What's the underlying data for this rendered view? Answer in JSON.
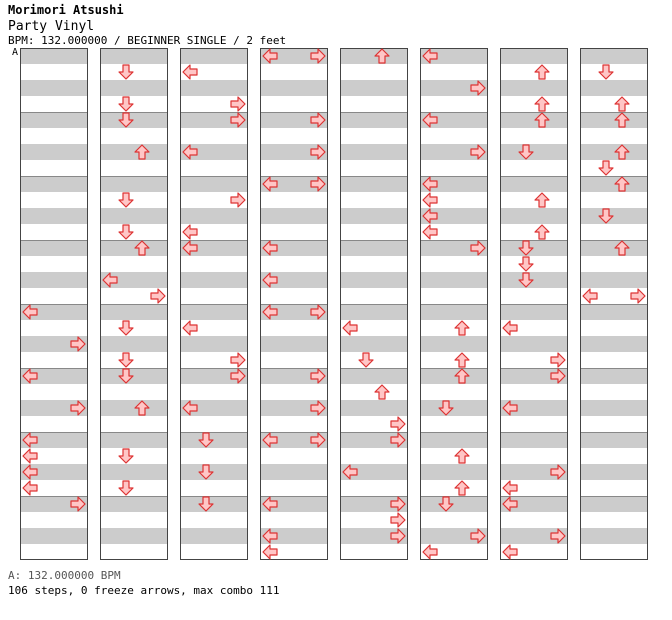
{
  "header": {
    "artist": "Morimori Atsushi",
    "title": "Party Vinyl",
    "info": "BPM: 132.000000 / BEGINNER SINGLE / 2 feet",
    "bpm_marker": "A"
  },
  "footer": {
    "bpm_line": "A: 132.000000 BPM",
    "stats": "106 steps, 0 freeze arrows, max combo 111"
  },
  "colors": {
    "stripe": "#cccccc",
    "arrow_fill": "#ffc6c6",
    "arrow_stroke": "#dd3333",
    "border": "#444444"
  },
  "chart_data": {
    "type": "step-chart",
    "columns": 8,
    "measures_per_column": 8,
    "lanes": [
      "left",
      "down",
      "up",
      "right"
    ],
    "notes": [
      {
        "c": 0,
        "r": 16,
        "d": "left"
      },
      {
        "c": 0,
        "r": 18,
        "d": "right"
      },
      {
        "c": 0,
        "r": 20,
        "d": "left"
      },
      {
        "c": 0,
        "r": 22,
        "d": "right"
      },
      {
        "c": 0,
        "r": 24,
        "d": "left"
      },
      {
        "c": 0,
        "r": 25,
        "d": "left"
      },
      {
        "c": 0,
        "r": 26,
        "d": "left"
      },
      {
        "c": 0,
        "r": 27,
        "d": "left"
      },
      {
        "c": 0,
        "r": 28,
        "d": "right"
      },
      {
        "c": 1,
        "r": 1,
        "d": "down"
      },
      {
        "c": 1,
        "r": 3,
        "d": "down"
      },
      {
        "c": 1,
        "r": 4,
        "d": "down"
      },
      {
        "c": 1,
        "r": 6,
        "d": "up"
      },
      {
        "c": 1,
        "r": 9,
        "d": "down"
      },
      {
        "c": 1,
        "r": 11,
        "d": "down"
      },
      {
        "c": 1,
        "r": 12,
        "d": "up"
      },
      {
        "c": 1,
        "r": 14,
        "d": "left"
      },
      {
        "c": 1,
        "r": 15,
        "d": "right"
      },
      {
        "c": 1,
        "r": 17,
        "d": "down"
      },
      {
        "c": 1,
        "r": 19,
        "d": "down"
      },
      {
        "c": 1,
        "r": 20,
        "d": "down"
      },
      {
        "c": 1,
        "r": 22,
        "d": "up"
      },
      {
        "c": 1,
        "r": 25,
        "d": "down"
      },
      {
        "c": 1,
        "r": 27,
        "d": "down"
      },
      {
        "c": 2,
        "r": 1,
        "d": "left"
      },
      {
        "c": 2,
        "r": 3,
        "d": "right"
      },
      {
        "c": 2,
        "r": 4,
        "d": "right"
      },
      {
        "c": 2,
        "r": 6,
        "d": "left"
      },
      {
        "c": 2,
        "r": 9,
        "d": "right"
      },
      {
        "c": 2,
        "r": 11,
        "d": "left"
      },
      {
        "c": 2,
        "r": 12,
        "d": "left"
      },
      {
        "c": 2,
        "r": 17,
        "d": "left"
      },
      {
        "c": 2,
        "r": 19,
        "d": "right"
      },
      {
        "c": 2,
        "r": 20,
        "d": "right"
      },
      {
        "c": 2,
        "r": 22,
        "d": "left"
      },
      {
        "c": 2,
        "r": 24,
        "d": "down"
      },
      {
        "c": 2,
        "r": 26,
        "d": "down"
      },
      {
        "c": 2,
        "r": 28,
        "d": "down"
      },
      {
        "c": 3,
        "r": 0,
        "d": "left"
      },
      {
        "c": 3,
        "r": 0,
        "d": "right"
      },
      {
        "c": 3,
        "r": 4,
        "d": "right"
      },
      {
        "c": 3,
        "r": 6,
        "d": "right"
      },
      {
        "c": 3,
        "r": 8,
        "d": "left"
      },
      {
        "c": 3,
        "r": 8,
        "d": "right"
      },
      {
        "c": 3,
        "r": 12,
        "d": "left"
      },
      {
        "c": 3,
        "r": 14,
        "d": "left"
      },
      {
        "c": 3,
        "r": 16,
        "d": "left"
      },
      {
        "c": 3,
        "r": 16,
        "d": "right"
      },
      {
        "c": 3,
        "r": 20,
        "d": "right"
      },
      {
        "c": 3,
        "r": 22,
        "d": "right"
      },
      {
        "c": 3,
        "r": 24,
        "d": "left"
      },
      {
        "c": 3,
        "r": 24,
        "d": "right"
      },
      {
        "c": 3,
        "r": 28,
        "d": "left"
      },
      {
        "c": 3,
        "r": 30,
        "d": "left"
      },
      {
        "c": 3,
        "r": 31,
        "d": "left"
      },
      {
        "c": 4,
        "r": 0,
        "d": "up"
      },
      {
        "c": 4,
        "r": 17,
        "d": "left"
      },
      {
        "c": 4,
        "r": 19,
        "d": "down"
      },
      {
        "c": 4,
        "r": 21,
        "d": "up"
      },
      {
        "c": 4,
        "r": 23,
        "d": "right"
      },
      {
        "c": 4,
        "r": 24,
        "d": "right"
      },
      {
        "c": 4,
        "r": 26,
        "d": "left"
      },
      {
        "c": 4,
        "r": 28,
        "d": "right"
      },
      {
        "c": 4,
        "r": 29,
        "d": "right"
      },
      {
        "c": 4,
        "r": 30,
        "d": "right"
      },
      {
        "c": 5,
        "r": 0,
        "d": "left"
      },
      {
        "c": 5,
        "r": 2,
        "d": "right"
      },
      {
        "c": 5,
        "r": 4,
        "d": "left"
      },
      {
        "c": 5,
        "r": 6,
        "d": "right"
      },
      {
        "c": 5,
        "r": 8,
        "d": "left"
      },
      {
        "c": 5,
        "r": 9,
        "d": "left"
      },
      {
        "c": 5,
        "r": 10,
        "d": "left"
      },
      {
        "c": 5,
        "r": 11,
        "d": "left"
      },
      {
        "c": 5,
        "r": 12,
        "d": "right"
      },
      {
        "c": 5,
        "r": 17,
        "d": "up"
      },
      {
        "c": 5,
        "r": 19,
        "d": "up"
      },
      {
        "c": 5,
        "r": 20,
        "d": "up"
      },
      {
        "c": 5,
        "r": 22,
        "d": "down"
      },
      {
        "c": 5,
        "r": 25,
        "d": "up"
      },
      {
        "c": 5,
        "r": 27,
        "d": "up"
      },
      {
        "c": 5,
        "r": 28,
        "d": "down"
      },
      {
        "c": 5,
        "r": 30,
        "d": "right"
      },
      {
        "c": 5,
        "r": 31,
        "d": "left"
      },
      {
        "c": 6,
        "r": 1,
        "d": "up"
      },
      {
        "c": 6,
        "r": 3,
        "d": "up"
      },
      {
        "c": 6,
        "r": 4,
        "d": "up"
      },
      {
        "c": 6,
        "r": 6,
        "d": "down"
      },
      {
        "c": 6,
        "r": 9,
        "d": "up"
      },
      {
        "c": 6,
        "r": 11,
        "d": "up"
      },
      {
        "c": 6,
        "r": 12,
        "d": "down"
      },
      {
        "c": 6,
        "r": 13,
        "d": "down"
      },
      {
        "c": 6,
        "r": 14,
        "d": "down"
      },
      {
        "c": 6,
        "r": 17,
        "d": "left"
      },
      {
        "c": 6,
        "r": 19,
        "d": "right"
      },
      {
        "c": 6,
        "r": 20,
        "d": "right"
      },
      {
        "c": 6,
        "r": 22,
        "d": "left"
      },
      {
        "c": 6,
        "r": 26,
        "d": "right"
      },
      {
        "c": 6,
        "r": 27,
        "d": "left"
      },
      {
        "c": 6,
        "r": 28,
        "d": "left"
      },
      {
        "c": 6,
        "r": 30,
        "d": "right"
      },
      {
        "c": 6,
        "r": 31,
        "d": "left"
      },
      {
        "c": 7,
        "r": 1,
        "d": "down"
      },
      {
        "c": 7,
        "r": 3,
        "d": "up"
      },
      {
        "c": 7,
        "r": 4,
        "d": "up"
      },
      {
        "c": 7,
        "r": 6,
        "d": "up"
      },
      {
        "c": 7,
        "r": 7,
        "d": "down"
      },
      {
        "c": 7,
        "r": 8,
        "d": "up"
      },
      {
        "c": 7,
        "r": 10,
        "d": "down"
      },
      {
        "c": 7,
        "r": 12,
        "d": "up"
      },
      {
        "c": 7,
        "r": 15,
        "d": "left"
      },
      {
        "c": 7,
        "r": 15,
        "d": "right"
      }
    ]
  }
}
